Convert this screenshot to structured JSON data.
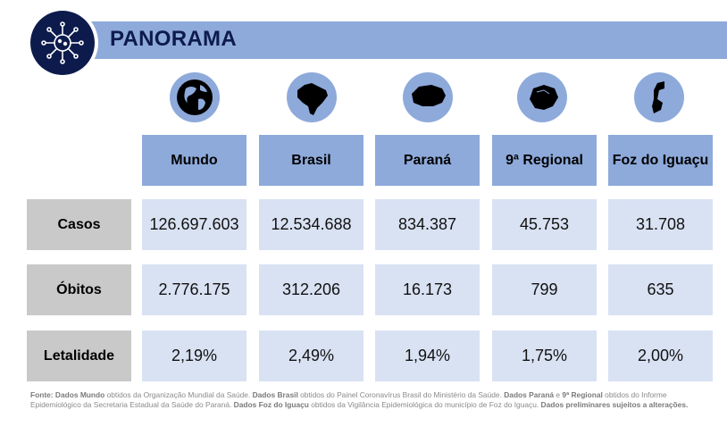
{
  "header": {
    "title": "PANORAMA",
    "logo_icon": "virus-icon"
  },
  "columns": [
    {
      "label": "Mundo",
      "icon": "globe-icon"
    },
    {
      "label": "Brasil",
      "icon": "brazil-map-icon"
    },
    {
      "label": "Paraná",
      "icon": "parana-map-icon"
    },
    {
      "label": "9ª Regional",
      "icon": "regional-map-icon"
    },
    {
      "label": "Foz do Iguaçu",
      "icon": "foz-map-icon"
    }
  ],
  "rows": [
    {
      "label": "Casos",
      "values": [
        "126.697.603",
        "12.534.688",
        "834.387",
        "45.753",
        "31.708"
      ]
    },
    {
      "label": "Óbitos",
      "values": [
        "2.776.175",
        "312.206",
        "16.173",
        "799",
        "635"
      ]
    },
    {
      "label": "Letalidade",
      "values": [
        "2,19%",
        "2,49%",
        "1,94%",
        "1,75%",
        "2,00%"
      ]
    }
  ],
  "footer": {
    "p1b": "Fonte: Dados Mundo",
    "p1": " obtidos da Organização Mundial da Saúde. ",
    "p2b": "Dados Brasil",
    "p2": " obtidos do Painel Coronavírus Brasil do Ministério da Saúde. ",
    "p3b": "Dados Paraná",
    "p3": " e ",
    "p4b": "9ª Regional",
    "p4": " obtidos do Informe Epidemiológico da Secretaria Estadual da Saúde do Paraná. ",
    "p5b": "Dados Foz do Iguaçu",
    "p5": " obtidos da Vigilância Epidemiológica do município de Foz do Iguaçu. ",
    "p6b": "Dados preliminares sujeitos a alterações."
  },
  "colors": {
    "banner": "#8eaadb",
    "navy": "#0d1b4c",
    "cell": "#d9e2f3",
    "label": "#c9c9c9"
  }
}
